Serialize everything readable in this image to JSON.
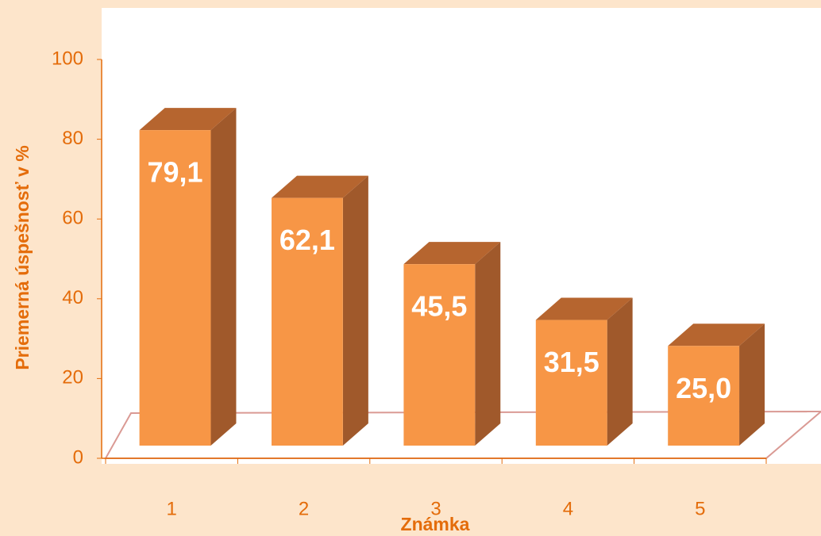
{
  "chart_data": {
    "type": "bar3d",
    "categories": [
      "1",
      "2",
      "3",
      "4",
      "5"
    ],
    "values": [
      79.1,
      62.1,
      45.5,
      31.5,
      25.0
    ],
    "value_labels": [
      "79,1",
      "62,1",
      "45,5",
      "31,5",
      "25,0"
    ],
    "color": "#f79646",
    "ylim": [
      0,
      100
    ],
    "yticks": [
      0,
      20,
      40,
      60,
      80,
      100
    ],
    "x_label": "Známka",
    "y_label": "Priemerná úspešnosť v %"
  }
}
